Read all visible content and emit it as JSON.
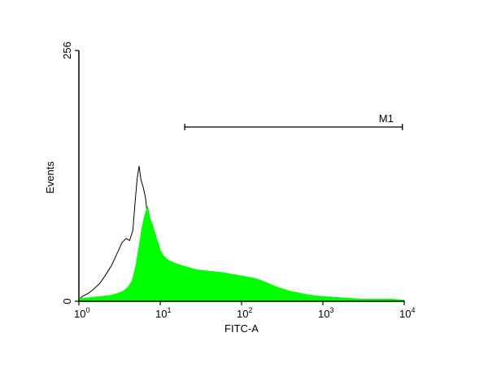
{
  "chart_data": {
    "type": "histogram",
    "xlabel": "FITC-A",
    "ylabel": "Events",
    "x_scale": "log",
    "xlim": [
      1,
      10000
    ],
    "ylim": [
      0,
      256
    ],
    "x_ticks": [
      {
        "base": "10",
        "exp": "0",
        "value": 1
      },
      {
        "base": "10",
        "exp": "1",
        "value": 10
      },
      {
        "base": "10",
        "exp": "2",
        "value": 100
      },
      {
        "base": "10",
        "exp": "3",
        "value": 1000
      },
      {
        "base": "10",
        "exp": "4",
        "value": 10000
      }
    ],
    "y_ticks": [
      {
        "label": "0",
        "value": 0
      },
      {
        "label": "256",
        "value": 256
      }
    ],
    "gate": {
      "label": "M1",
      "x_start": 20,
      "x_end": 9500,
      "y": 128
    },
    "series": [
      {
        "color": "#000000",
        "style": "outline",
        "x": [
          1.0,
          1.1,
          1.3,
          1.5,
          1.8,
          2.1,
          2.5,
          3.0,
          3.4,
          3.8,
          4.2,
          4.6,
          4.9,
          5.2,
          5.5,
          5.8,
          6.2,
          6.6,
          7.0,
          7.6,
          8.2,
          9.0,
          10.0,
          11.5,
          13.0,
          15.0,
          18.0,
          22.0,
          28.0,
          36.0,
          50.0,
          70.0,
          100.0,
          150.0,
          250.0,
          400.0,
          700.0,
          1000.0,
          2000.0,
          5000.0,
          10000.0
        ],
        "y": [
          2,
          5,
          8,
          12,
          18,
          26,
          36,
          50,
          60,
          64,
          62,
          72,
          100,
          125,
          138,
          124,
          116,
          105,
          85,
          72,
          55,
          42,
          32,
          25,
          18,
          13,
          9,
          6,
          4,
          3,
          2,
          1,
          1,
          1,
          0,
          0,
          0,
          0,
          0,
          0,
          0
        ]
      },
      {
        "color": "#00ff00",
        "style": "filled",
        "x": [
          1.0,
          1.2,
          1.5,
          2.0,
          2.5,
          3.0,
          3.5,
          4.0,
          4.5,
          5.0,
          5.5,
          6.0,
          6.5,
          7.0,
          7.5,
          8.0,
          9.0,
          10.0,
          11.0,
          12.5,
          14.0,
          16.0,
          19.0,
          23.0,
          28.0,
          35.0,
          45.0,
          60.0,
          80.0,
          110.0,
          150.0,
          200.0,
          280.0,
          400.0,
          600.0,
          900.0,
          1300.0,
          2000.0,
          3000.0,
          5000.0,
          7000.0,
          10000.0
        ],
        "y": [
          3,
          3,
          4,
          5,
          6,
          8,
          10,
          14,
          20,
          35,
          55,
          75,
          88,
          96,
          84,
          78,
          64,
          52,
          46,
          42,
          40,
          38,
          36,
          34,
          32,
          31,
          30,
          29,
          27,
          25,
          23,
          19,
          14,
          10,
          7,
          5,
          4,
          3,
          2,
          2,
          2,
          1
        ]
      }
    ]
  }
}
